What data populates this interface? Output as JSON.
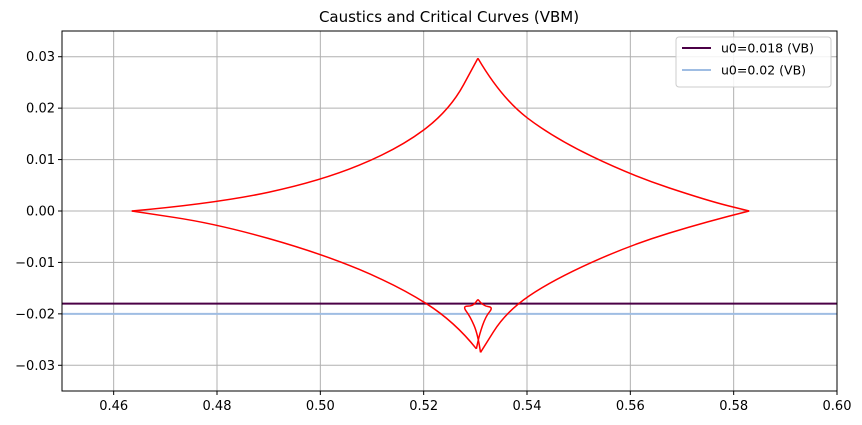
{
  "chart_data": {
    "type": "line",
    "title": "Caustics and Critical Curves (VBM)",
    "xlabel": "",
    "ylabel": "",
    "xlim": [
      0.45,
      0.6
    ],
    "ylim": [
      -0.035,
      0.035
    ],
    "grid": true,
    "legend_position": "top-right",
    "x_ticks": [
      {
        "value": 0.46,
        "label": "0.46"
      },
      {
        "value": 0.48,
        "label": "0.48"
      },
      {
        "value": 0.5,
        "label": "0.50"
      },
      {
        "value": 0.52,
        "label": "0.52"
      },
      {
        "value": 0.54,
        "label": "0.54"
      },
      {
        "value": 0.56,
        "label": "0.56"
      },
      {
        "value": 0.58,
        "label": "0.58"
      },
      {
        "value": 0.6,
        "label": "0.60"
      }
    ],
    "y_ticks": [
      {
        "value": 0.03,
        "label": "0.03"
      },
      {
        "value": 0.02,
        "label": "0.02"
      },
      {
        "value": 0.01,
        "label": "0.01"
      },
      {
        "value": 0.0,
        "label": "0.00"
      },
      {
        "value": -0.01,
        "label": "−0.01"
      },
      {
        "value": -0.02,
        "label": "−0.02"
      },
      {
        "value": -0.03,
        "label": "−0.03"
      }
    ],
    "series": [
      {
        "name": "u0=0.018 (VB)",
        "kind": "hline",
        "y": -0.018,
        "color": "#4b0046"
      },
      {
        "name": "u0=0.02 (VB)",
        "kind": "hline",
        "y": -0.02,
        "color": "#9fbde3"
      }
    ],
    "caustics": [
      {
        "color": "#ff0000",
        "segments": [
          [
            [
              0.4635,
              0.0
            ],
            [
              0.48,
              0.0015
            ],
            [
              0.5,
              0.0058
            ],
            [
              0.515,
              0.012
            ],
            [
              0.525,
              0.0195
            ],
            [
              0.5305,
              0.0297
            ]
          ],
          [
            [
              0.5305,
              0.0297
            ],
            [
              0.535,
              0.022
            ],
            [
              0.545,
              0.0143
            ],
            [
              0.56,
              0.007
            ],
            [
              0.575,
              0.002
            ],
            [
              0.583,
              0.0
            ]
          ],
          [
            [
              0.583,
              0.0
            ],
            [
              0.575,
              -0.002
            ],
            [
              0.56,
              -0.0066
            ],
            [
              0.545,
              -0.0134
            ],
            [
              0.536,
              -0.0195
            ],
            [
              0.531,
              -0.0275
            ]
          ],
          [
            [
              0.531,
              -0.0275
            ],
            [
              0.5305,
              -0.024
            ],
            [
              0.529,
              -0.0205
            ],
            [
              0.5275,
              -0.0185
            ],
            [
              0.5295,
              -0.0185
            ],
            [
              0.5305,
              -0.0172
            ]
          ],
          [
            [
              0.5305,
              -0.0172
            ],
            [
              0.5315,
              -0.0185
            ],
            [
              0.5335,
              -0.0187
            ],
            [
              0.532,
              -0.0205
            ],
            [
              0.5308,
              -0.024
            ],
            [
              0.5302,
              -0.0268
            ]
          ],
          [
            [
              0.5302,
              -0.0268
            ],
            [
              0.526,
              -0.0215
            ],
            [
              0.515,
              -0.0145
            ],
            [
              0.5,
              -0.0082
            ],
            [
              0.48,
              -0.0025
            ],
            [
              0.4635,
              0.0
            ]
          ]
        ]
      }
    ]
  }
}
